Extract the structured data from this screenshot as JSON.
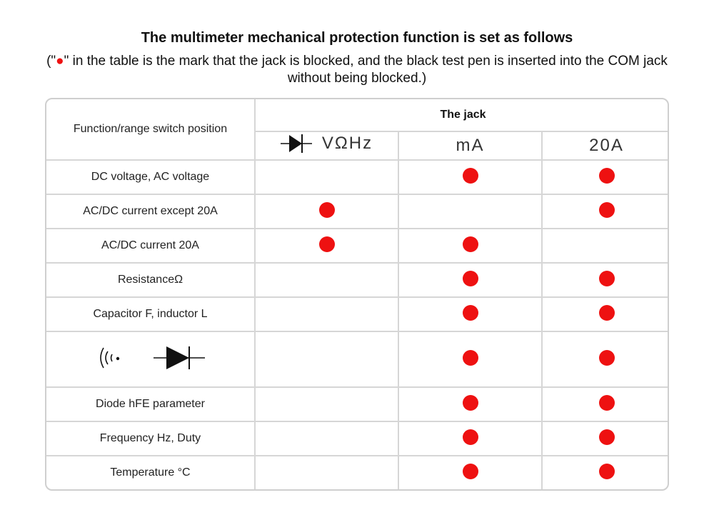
{
  "title": "The multimeter mechanical protection function is set as follows",
  "subtitle": {
    "prefix": "(\"",
    "mark": "●",
    "suffix": "\" in the table is the mark that the jack is blocked, and the black test pen is inserted into the COM jack without being blocked.)"
  },
  "colors": {
    "dot": "#ee1111",
    "grid": "#d6d6d6"
  },
  "table": {
    "func_header": "Function/range switch position",
    "jack_header": "The jack",
    "columns": [
      {
        "label": "VΩHz",
        "icon": "diode-icon"
      },
      {
        "label": "mA"
      },
      {
        "label": "20A"
      }
    ],
    "rows": [
      {
        "label": "DC voltage, AC voltage",
        "blocked": [
          false,
          true,
          true
        ]
      },
      {
        "label": "AC/DC current except 20A",
        "blocked": [
          true,
          false,
          true
        ]
      },
      {
        "label": "AC/DC current 20A",
        "blocked": [
          true,
          true,
          false
        ]
      },
      {
        "label": "ResistanceΩ",
        "blocked": [
          false,
          true,
          true
        ]
      },
      {
        "label": "Capacitor F, inductor L",
        "blocked": [
          false,
          true,
          true
        ]
      },
      {
        "label": "",
        "icons": [
          "continuity-sound-icon",
          "diode-icon"
        ],
        "blocked": [
          false,
          true,
          true
        ]
      },
      {
        "label": "Diode hFE parameter",
        "blocked": [
          false,
          true,
          true
        ]
      },
      {
        "label": "Frequency Hz, Duty",
        "blocked": [
          false,
          true,
          true
        ]
      },
      {
        "label": "Temperature °C",
        "blocked": [
          false,
          true,
          true
        ]
      }
    ]
  }
}
